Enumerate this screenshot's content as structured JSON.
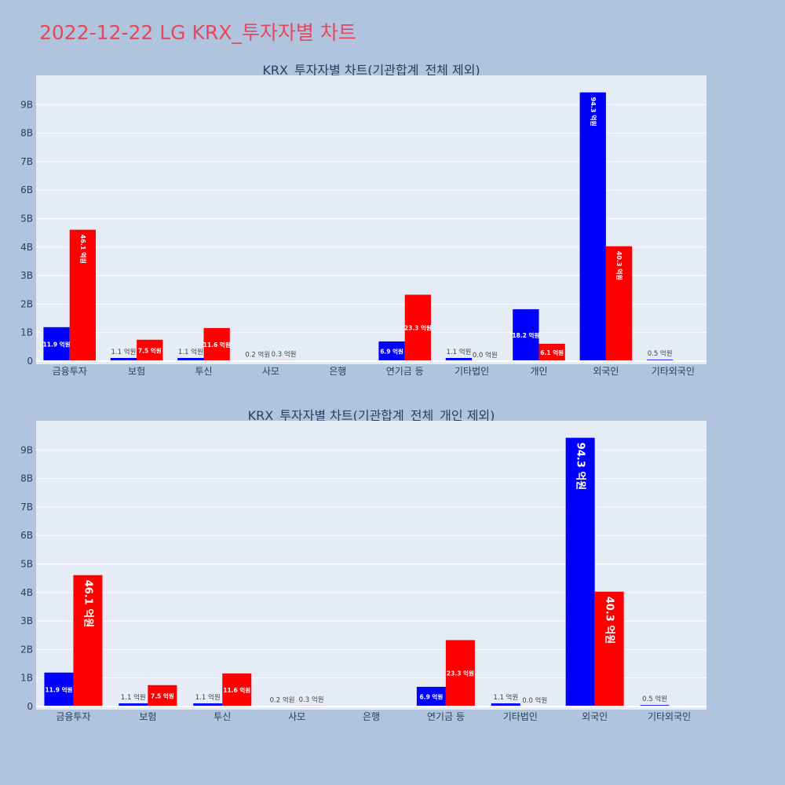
{
  "page": {
    "title": "2022-12-22 LG KRX_투자자별 차트"
  },
  "colors": {
    "background": "#b0c4de",
    "plot_bg": "#e5ecf6",
    "buy": "#0000ff",
    "sell": "#ff0000",
    "title": "#e8465c"
  },
  "chart_data": [
    {
      "type": "bar",
      "title": "KRX_투자자별 차트(기관합계_전체 제외)",
      "categories": [
        "금융투자",
        "보험",
        "투신",
        "사모",
        "은행",
        "연기금 등",
        "기타법인",
        "개인",
        "외국인",
        "기타외국인"
      ],
      "series": [
        {
          "color": "#0000ff",
          "values": [
            1.19,
            0.11,
            0.11,
            0.02,
            0,
            0.69,
            0.11,
            1.82,
            9.43,
            0.05
          ],
          "labels": [
            "11.9 억원",
            "1.1 억원",
            "1.1 억원",
            "0.2 억원",
            "",
            "6.9 억원",
            "1.1 억원",
            "18.2 억원",
            "94.3 억원",
            "0.5 억원"
          ]
        },
        {
          "color": "#ff0000",
          "values": [
            4.61,
            0.75,
            1.16,
            0.03,
            0,
            2.33,
            0.0,
            0.61,
            4.03,
            0
          ],
          "labels": [
            "46.1 억원",
            "7.5 억원",
            "11.6 억원",
            "0.3 억원",
            "",
            "23.3 억원",
            "0.0 억원",
            "6.1 억원",
            "40.3 억원",
            ""
          ]
        }
      ],
      "y_ticks": [
        "0",
        "1B",
        "2B",
        "3B",
        "4B",
        "5B",
        "6B",
        "7B",
        "8B",
        "9B"
      ],
      "ylim": [
        0,
        10
      ],
      "grid": true
    },
    {
      "type": "bar",
      "title": "KRX_투자자별 차트(기관합계_전체_개인 제외)",
      "categories": [
        "금융투자",
        "보험",
        "투신",
        "사모",
        "은행",
        "연기금 등",
        "기타법인",
        "외국인",
        "기타외국인"
      ],
      "series": [
        {
          "color": "#0000ff",
          "values": [
            1.19,
            0.11,
            0.11,
            0.02,
            0,
            0.69,
            0.11,
            9.43,
            0.05
          ],
          "labels": [
            "11.9 억원",
            "1.1 억원",
            "1.1 억원",
            "0.2 억원",
            "",
            "6.9 억원",
            "1.1 억원",
            "94.3 억원",
            "0.5 억원"
          ]
        },
        {
          "color": "#ff0000",
          "values": [
            4.61,
            0.75,
            1.16,
            0.03,
            0,
            2.33,
            0.0,
            4.03,
            0
          ],
          "labels": [
            "46.1 억원",
            "7.5 억원",
            "11.6 억원",
            "0.3 억원",
            "",
            "23.3 억원",
            "0.0 억원",
            "40.3 억원",
            ""
          ]
        }
      ],
      "y_ticks": [
        "0",
        "1B",
        "2B",
        "3B",
        "4B",
        "5B",
        "6B",
        "7B",
        "8B",
        "9B"
      ],
      "ylim": [
        0,
        10
      ],
      "grid": true
    }
  ]
}
